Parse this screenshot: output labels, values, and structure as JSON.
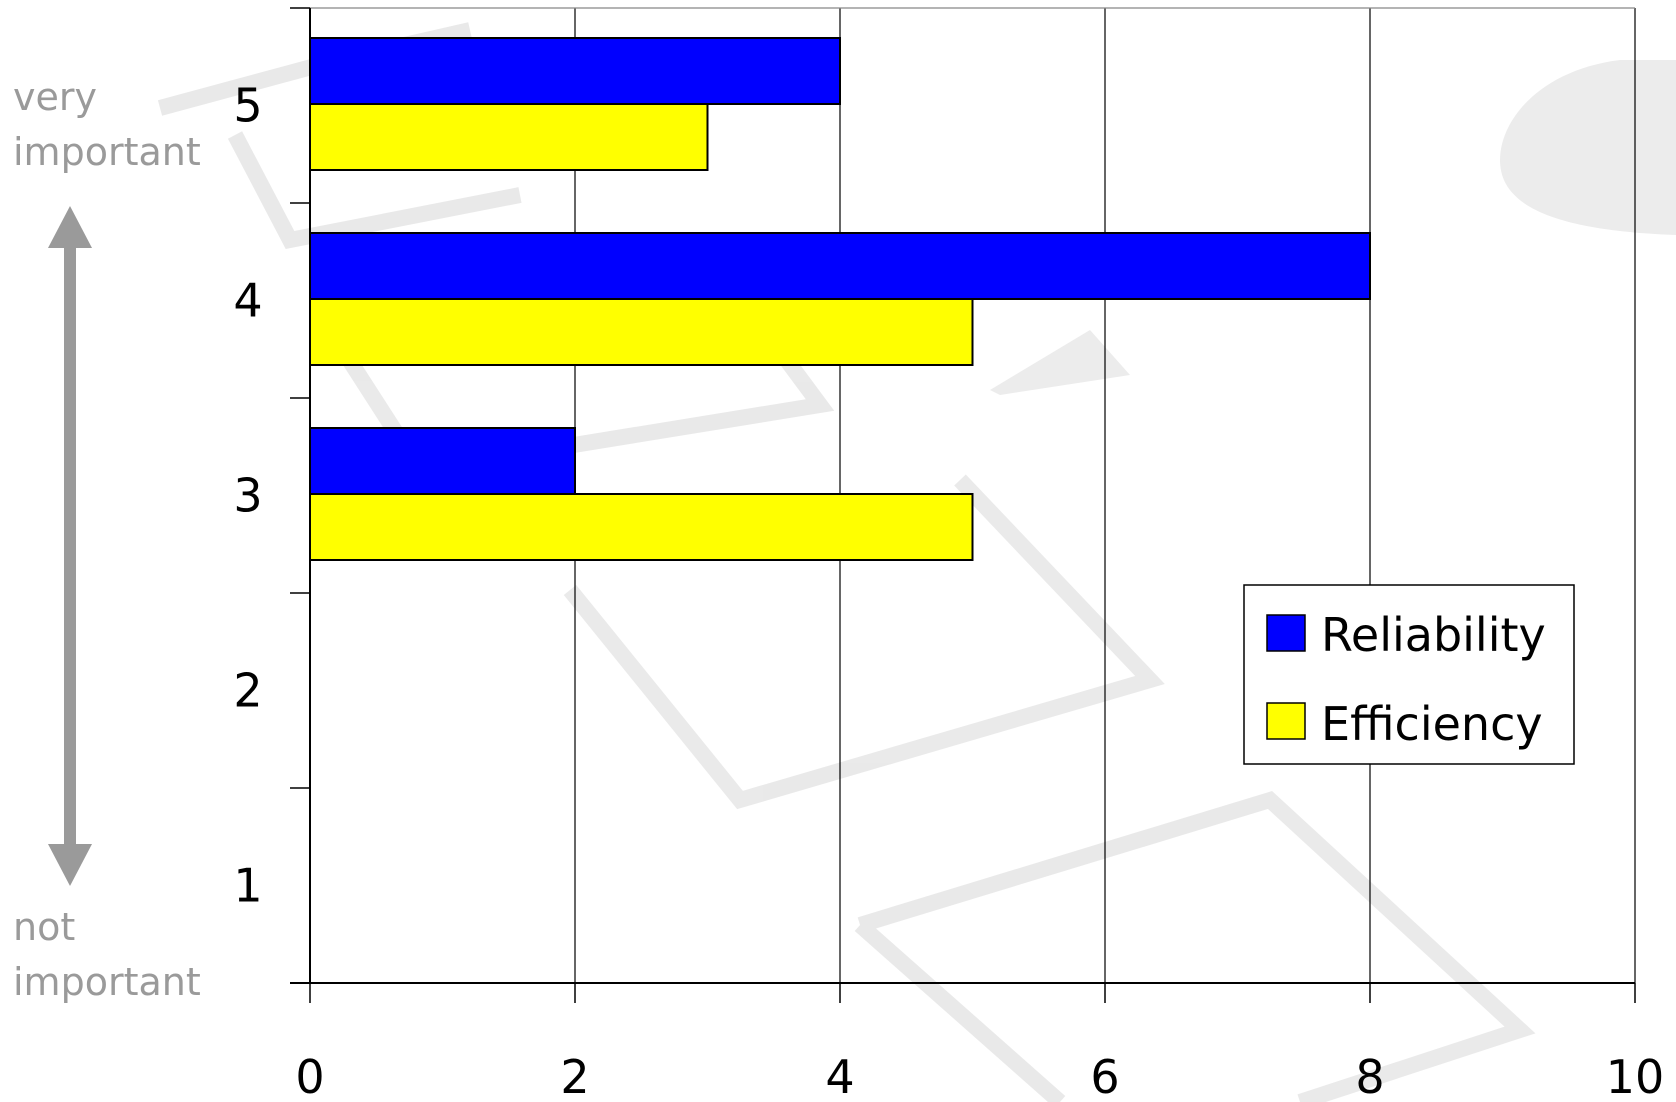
{
  "chart_data": {
    "type": "bar",
    "orientation": "horizontal",
    "categories": [
      "1",
      "2",
      "3",
      "4",
      "5"
    ],
    "series": [
      {
        "name": "Reliability",
        "color": "#0000ff",
        "values": [
          0,
          0,
          2,
          8,
          4
        ]
      },
      {
        "name": "Efficiency",
        "color": "#ffff00",
        "values": [
          0,
          0,
          5,
          5,
          3
        ]
      }
    ],
    "xticks": [
      "0",
      "2",
      "4",
      "6",
      "8",
      "10"
    ],
    "xlim": [
      0,
      10
    ],
    "grid": "vertical",
    "legend_position": "bottom-right",
    "side_labels": {
      "top_line1": "very",
      "top_line2": "important",
      "bottom_line1": "not",
      "bottom_line2": "important"
    },
    "side_arrow_color": "#9a9a9a"
  }
}
